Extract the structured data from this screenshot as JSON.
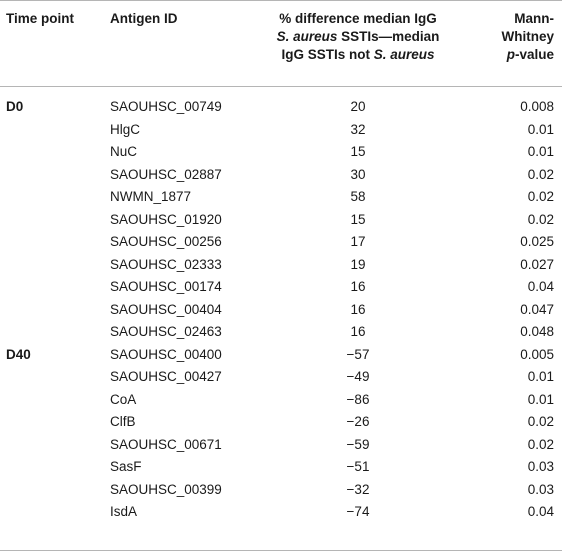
{
  "headers": {
    "time_point": "Time point",
    "antigen_id": "Antigen ID",
    "diff_line1": "% difference median IgG",
    "diff_line2_italic": "S. aureus",
    "diff_line2_rest": " SSTIs—median",
    "diff_line3_pre": "IgG SSTIs not ",
    "diff_line3_italic": "S. aureus",
    "pval_line1": "Mann-",
    "pval_line2": "Whitney",
    "pval_line3_italic": "p",
    "pval_line3_rest": "-value"
  },
  "rows": [
    {
      "time_point": "D0",
      "antigen": "SAOUHSC_00749",
      "diff": "20",
      "p": "0.008"
    },
    {
      "time_point": "",
      "antigen": "HlgC",
      "diff": "32",
      "p": "0.01"
    },
    {
      "time_point": "",
      "antigen": "NuC",
      "diff": "15",
      "p": "0.01"
    },
    {
      "time_point": "",
      "antigen": "SAOUHSC_02887",
      "diff": "30",
      "p": "0.02"
    },
    {
      "time_point": "",
      "antigen": "NWMN_1877",
      "diff": "58",
      "p": "0.02"
    },
    {
      "time_point": "",
      "antigen": "SAOUHSC_01920",
      "diff": "15",
      "p": "0.02"
    },
    {
      "time_point": "",
      "antigen": "SAOUHSC_00256",
      "diff": "17",
      "p": "0.025"
    },
    {
      "time_point": "",
      "antigen": "SAOUHSC_02333",
      "diff": "19",
      "p": "0.027"
    },
    {
      "time_point": "",
      "antigen": "SAOUHSC_00174",
      "diff": "16",
      "p": "0.04"
    },
    {
      "time_point": "",
      "antigen": "SAOUHSC_00404",
      "diff": "16",
      "p": "0.047"
    },
    {
      "time_point": "",
      "antigen": "SAOUHSC_02463",
      "diff": "16",
      "p": "0.048"
    },
    {
      "time_point": "D40",
      "antigen": "SAOUHSC_00400",
      "diff": "−57",
      "p": "0.005"
    },
    {
      "time_point": "",
      "antigen": "SAOUHSC_00427",
      "diff": "−49",
      "p": "0.01"
    },
    {
      "time_point": "",
      "antigen": "CoA",
      "diff": "−86",
      "p": "0.01"
    },
    {
      "time_point": "",
      "antigen": "ClfB",
      "diff": "−26",
      "p": "0.02"
    },
    {
      "time_point": "",
      "antigen": "SAOUHSC_00671",
      "diff": "−59",
      "p": "0.02"
    },
    {
      "time_point": "",
      "antigen": "SasF",
      "diff": "−51",
      "p": "0.03"
    },
    {
      "time_point": "",
      "antigen": "SAOUHSC_00399",
      "diff": "−32",
      "p": "0.03"
    },
    {
      "time_point": "",
      "antigen": "IsdA",
      "diff": "−74",
      "p": "0.04"
    }
  ]
}
